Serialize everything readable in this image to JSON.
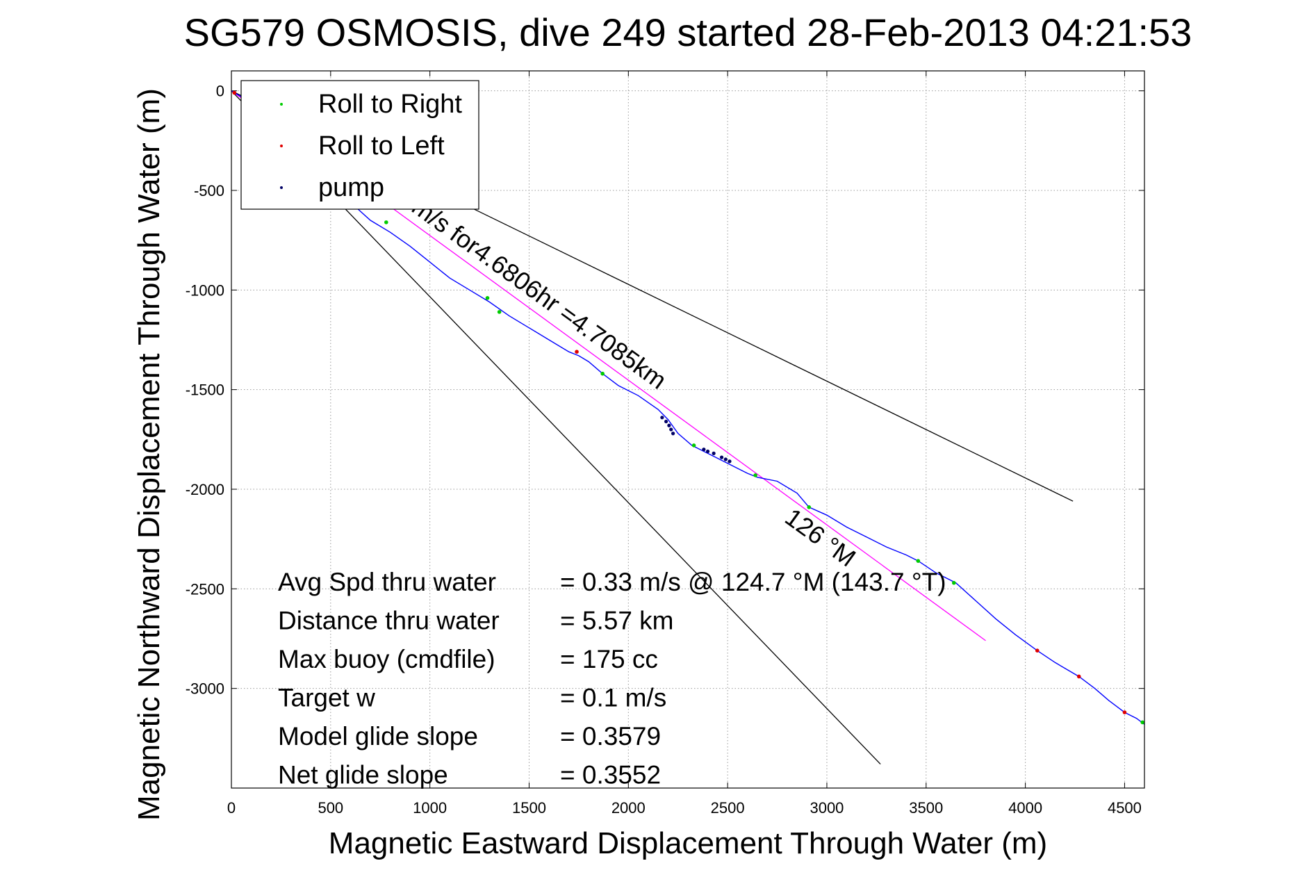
{
  "chart_data": {
    "type": "line",
    "title": "SG579 OSMOSIS, dive 249 started 28-Feb-2013 04:21:53",
    "xlabel": "Magnetic Eastward Displacement Through Water (m)",
    "ylabel": "Magnetic Northward Displacement Through Water (m)",
    "xlim": [
      0,
      4600
    ],
    "ylim": [
      -3500,
      100
    ],
    "xticks": [
      0,
      500,
      1000,
      1500,
      2000,
      2500,
      3000,
      3500,
      4000,
      4500
    ],
    "yticks": [
      0,
      -500,
      -1000,
      -1500,
      -2000,
      -2500,
      -3000
    ],
    "grid": true,
    "legend_position": "top-left",
    "legend": [
      {
        "label": "Roll to Right",
        "color": "#00cc00"
      },
      {
        "label": "Roll to Left",
        "color": "#e00000"
      },
      {
        "label": "pump",
        "color": "#000066"
      }
    ],
    "track": {
      "color": "#0000ff",
      "x": [
        0,
        50,
        100,
        200,
        300,
        400,
        500,
        600,
        700,
        800,
        900,
        1000,
        1100,
        1200,
        1300,
        1400,
        1500,
        1600,
        1700,
        1750,
        1800,
        1870,
        1950,
        2050,
        2150,
        2200,
        2250,
        2320,
        2400,
        2500,
        2600,
        2650,
        2750,
        2850,
        2910,
        3000,
        3100,
        3200,
        3300,
        3400,
        3460,
        3550,
        3650,
        3750,
        3850,
        3950,
        4060,
        4150,
        4270,
        4350,
        4420,
        4500,
        4560,
        4600
      ],
      "y": [
        0,
        -30,
        -70,
        -150,
        -240,
        -340,
        -450,
        -560,
        -650,
        -710,
        -780,
        -860,
        -940,
        -1000,
        -1060,
        -1130,
        -1190,
        -1250,
        -1310,
        -1330,
        -1360,
        -1420,
        -1480,
        -1530,
        -1600,
        -1650,
        -1720,
        -1780,
        -1820,
        -1870,
        -1920,
        -1940,
        -1960,
        -2020,
        -2090,
        -2130,
        -2190,
        -2240,
        -2290,
        -2330,
        -2360,
        -2420,
        -2470,
        -2560,
        -2650,
        -2730,
        -2810,
        -2870,
        -2940,
        -3000,
        -3060,
        -3120,
        -3150,
        -3180
      ]
    },
    "markers": {
      "roll_right": {
        "x": [
          780,
          1290,
          1350,
          1870,
          2330,
          2640,
          2910,
          3460,
          3640,
          4590
        ],
        "y": [
          -660,
          -1040,
          -1110,
          -1420,
          -1780,
          -1930,
          -2090,
          -2360,
          -2470,
          -3170
        ]
      },
      "roll_left": {
        "x": [
          15,
          1740,
          4060,
          4270,
          4500
        ],
        "y": [
          -10,
          -1310,
          -2810,
          -2940,
          -3120
        ]
      },
      "pump": {
        "x": [
          2170,
          2190,
          2205,
          2215,
          2225,
          2380,
          2400,
          2430,
          2470,
          2490,
          2510
        ],
        "y": [
          -1640,
          -1660,
          -1680,
          -1700,
          -1720,
          -1800,
          -1810,
          -1820,
          -1840,
          -1850,
          -1860
        ]
      }
    },
    "reference_lines": [
      {
        "color": "#000000",
        "x": [
          0,
          4240
        ],
        "y": [
          0,
          -2060
        ]
      },
      {
        "color": "#000000",
        "x": [
          0,
          3270
        ],
        "y": [
          0,
          -3380
        ]
      },
      {
        "color": "#ff00ff",
        "x": [
          0,
          3800
        ],
        "y": [
          0,
          -2760
        ]
      }
    ],
    "annotations": [
      {
        "text": "m/s for4.6806hr =4.7085km",
        "x": 900,
        "y": -600,
        "angle": 35.9
      },
      {
        "text": "126 °M",
        "x": 2780,
        "y": -2160,
        "angle": 35.9
      }
    ],
    "stats": [
      {
        "label": "Avg Spd thru water",
        "value": "=  0.33 m/s @ 124.7  °M (143.7 °T)"
      },
      {
        "label": "Distance thru water",
        "value": "=  5.57 km"
      },
      {
        "label": "Max buoy (cmdfile)",
        "value": "= 175 cc"
      },
      {
        "label": "Target w",
        "value": "= 0.1 m/s"
      },
      {
        "label": "Model glide slope",
        "value": "= 0.3579"
      },
      {
        "label": "Net glide slope",
        "value": "= 0.3552"
      }
    ]
  }
}
